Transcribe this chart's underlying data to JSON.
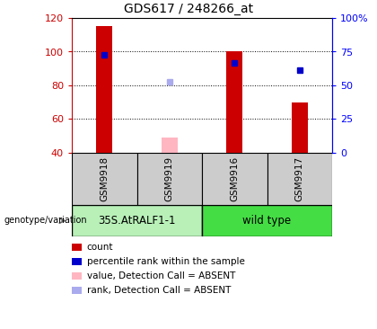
{
  "title": "GDS617 / 248266_at",
  "samples": [
    "GSM9918",
    "GSM9919",
    "GSM9916",
    "GSM9917"
  ],
  "bar_bottom": 40,
  "ylim_left": [
    40,
    120
  ],
  "ylim_right": [
    0,
    100
  ],
  "yticks_left": [
    40,
    60,
    80,
    100,
    120
  ],
  "yticks_right": [
    0,
    25,
    50,
    75,
    100
  ],
  "ytick_labels_right": [
    "0",
    "25",
    "50",
    "75",
    "100%"
  ],
  "red_bar_heights": [
    115,
    null,
    100,
    70
  ],
  "pink_bar_heights": [
    null,
    49,
    null,
    null
  ],
  "blue_square_y": [
    98,
    null,
    93.5,
    89
  ],
  "light_blue_square_y": [
    null,
    82,
    null,
    null
  ],
  "red_color": "#cc0000",
  "pink_color": "#ffb6c1",
  "blue_color": "#0000cc",
  "light_blue_color": "#aaaaee",
  "group1_color": "#b8f0b8",
  "group2_color": "#44dd44",
  "label_bg_color": "#cccccc",
  "legend_items": [
    {
      "color": "#cc0000",
      "label": "count"
    },
    {
      "color": "#0000cc",
      "label": "percentile rank within the sample"
    },
    {
      "color": "#ffb6c1",
      "label": "value, Detection Call = ABSENT"
    },
    {
      "color": "#aaaaee",
      "label": "rank, Detection Call = ABSENT"
    }
  ]
}
